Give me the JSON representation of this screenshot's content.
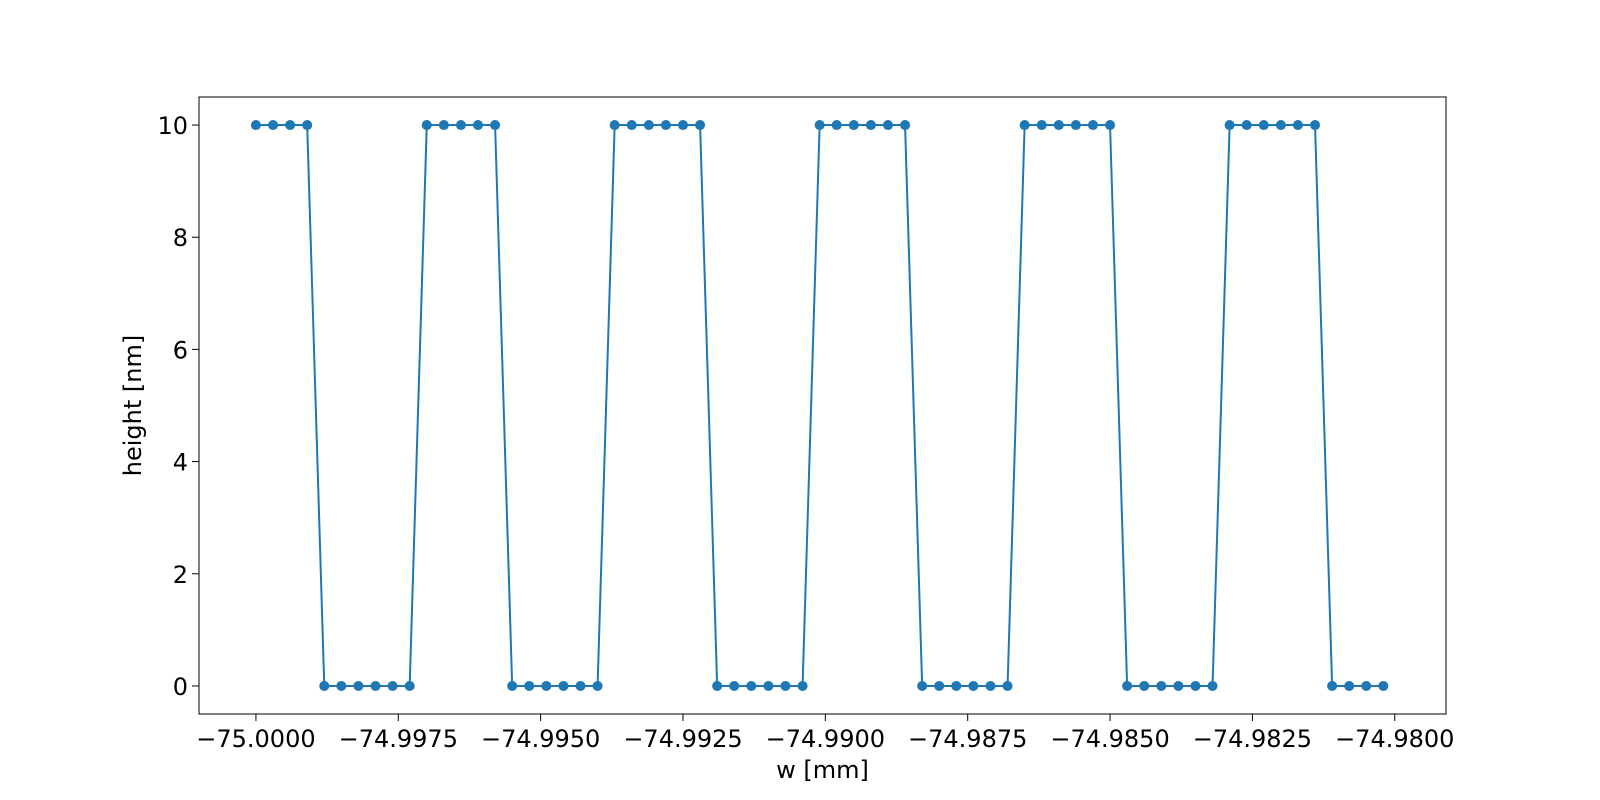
{
  "chart_data": {
    "type": "line",
    "title": "",
    "xlabel": "w [mm]",
    "ylabel": "height [nm]",
    "xlim": [
      -75.001,
      -74.9791
    ],
    "ylim": [
      -0.5,
      10.5
    ],
    "grid": false,
    "legend": "none",
    "colors": {
      "series": "#1f77b4",
      "axes": "#000000",
      "background": "#ffffff"
    },
    "x_ticks": [
      {
        "value": -75.0,
        "label": "−75.0000"
      },
      {
        "value": -74.9975,
        "label": "−74.9975"
      },
      {
        "value": -74.995,
        "label": "−74.9950"
      },
      {
        "value": -74.9925,
        "label": "−74.9925"
      },
      {
        "value": -74.99,
        "label": "−74.9900"
      },
      {
        "value": -74.9875,
        "label": "−74.9875"
      },
      {
        "value": -74.985,
        "label": "−74.9850"
      },
      {
        "value": -74.9825,
        "label": "−74.9825"
      },
      {
        "value": -74.98,
        "label": "−74.9800"
      }
    ],
    "y_ticks": [
      {
        "value": 0,
        "label": "0"
      },
      {
        "value": 2,
        "label": "2"
      },
      {
        "value": 4,
        "label": "4"
      },
      {
        "value": 6,
        "label": "6"
      },
      {
        "value": 8,
        "label": "8"
      },
      {
        "value": 10,
        "label": "10"
      }
    ],
    "series": [
      {
        "name": "height",
        "marker": "circle",
        "x": [
          -75.0,
          -74.9997,
          -74.9994,
          -74.9991,
          -74.9988,
          -74.9985,
          -74.9982,
          -74.9979,
          -74.9976,
          -74.9973,
          -74.997,
          -74.9967,
          -74.9964,
          -74.9961,
          -74.9958,
          -74.9955,
          -74.9952,
          -74.9949,
          -74.9946,
          -74.9943,
          -74.994,
          -74.9937,
          -74.9934,
          -74.9931,
          -74.9928,
          -74.9925,
          -74.9922,
          -74.9919,
          -74.9916,
          -74.9913,
          -74.991,
          -74.9907,
          -74.9904,
          -74.9901,
          -74.9898,
          -74.9895,
          -74.9892,
          -74.9889,
          -74.9886,
          -74.9883,
          -74.988,
          -74.9877,
          -74.9874,
          -74.9871,
          -74.9868,
          -74.9865,
          -74.9862,
          -74.9859,
          -74.9856,
          -74.9853,
          -74.985,
          -74.9847,
          -74.9844,
          -74.9841,
          -74.9838,
          -74.9835,
          -74.9832,
          -74.9829,
          -74.9826,
          -74.9823,
          -74.982,
          -74.9817,
          -74.9814,
          -74.9811,
          -74.9808,
          -74.9805,
          -74.9802
        ],
        "y": [
          10,
          10,
          10,
          10,
          0,
          0,
          0,
          0,
          0,
          0,
          10,
          10,
          10,
          10,
          10,
          0,
          0,
          0,
          0,
          0,
          0,
          10,
          10,
          10,
          10,
          10,
          10,
          0,
          0,
          0,
          0,
          0,
          0,
          10,
          10,
          10,
          10,
          10,
          10,
          0,
          0,
          0,
          0,
          0,
          0,
          10,
          10,
          10,
          10,
          10,
          10,
          0,
          0,
          0,
          0,
          0,
          0,
          10,
          10,
          10,
          10,
          10,
          10,
          0,
          0,
          0,
          0
        ]
      }
    ]
  }
}
